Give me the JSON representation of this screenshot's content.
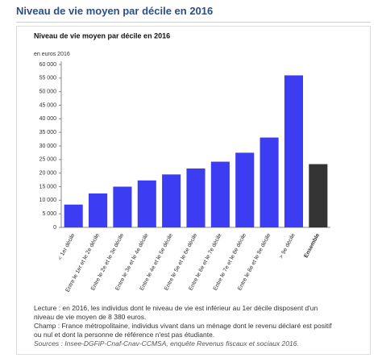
{
  "page": {
    "title": "Niveau de vie moyen par décile en 2016"
  },
  "chart_data": {
    "type": "bar",
    "title": "Niveau de vie moyen par décile en 2016",
    "y_unit_label": "en euros 2016",
    "categories": [
      "< 1er décile",
      "Entre le 1er et le 2e décile",
      "Entre le 2e et le 3e décile",
      "Entre le 3e et le 4e décile",
      "Entre le 4e et le 5e décile",
      "Entre le 5e et le 6e décile",
      "Entre le 6e et le 7e décile",
      "Entre le 7e et le 8e décile",
      "Entre le 8e et le 9e décile",
      "> 9e décile",
      "Ensemble"
    ],
    "values": [
      8400,
      12500,
      15000,
      17300,
      19500,
      21700,
      24200,
      27500,
      33100,
      56000,
      23300
    ],
    "colors": [
      "#3c3cf2",
      "#3c3cf2",
      "#3c3cf2",
      "#3c3cf2",
      "#3c3cf2",
      "#3c3cf2",
      "#3c3cf2",
      "#3c3cf2",
      "#3c3cf2",
      "#3c3cf2",
      "#333333"
    ],
    "ylim": [
      0,
      60000
    ],
    "yticks": [
      0,
      {
        "value": 5000,
        "label": "5 000"
      },
      {
        "value": 10000,
        "label": "10 000"
      },
      {
        "value": 15000,
        "label": "15 000"
      },
      {
        "value": 20000,
        "label": "20 000"
      },
      {
        "value": 25000,
        "label": "25 000"
      },
      {
        "value": 30000,
        "label": "30 000"
      },
      {
        "value": 35000,
        "label": "35 000"
      },
      {
        "value": 40000,
        "label": "40 000"
      },
      {
        "value": 45000,
        "label": "45 000"
      },
      {
        "value": 50000,
        "label": "50 000"
      },
      {
        "value": 55000,
        "label": "55 000"
      },
      {
        "value": 60000,
        "label": "60 000"
      }
    ],
    "grid": false
  },
  "notes": {
    "lecture": "Lecture : en 2016, les individus dont le niveau de vie est inférieur au 1er décile disposent d'un niveau de vie moyen de 8 380 euros.",
    "champ": "Champ : France métropolitaine, individus vivant dans un ménage dont le revenu déclaré est positif ou nul et dont la personne de référence n'est pas étudiante.",
    "sources": "Sources : Insee-DGFiP-Cnaf-Cnav-CCMSA, enquête Revenus fiscaux et sociaux 2016."
  }
}
